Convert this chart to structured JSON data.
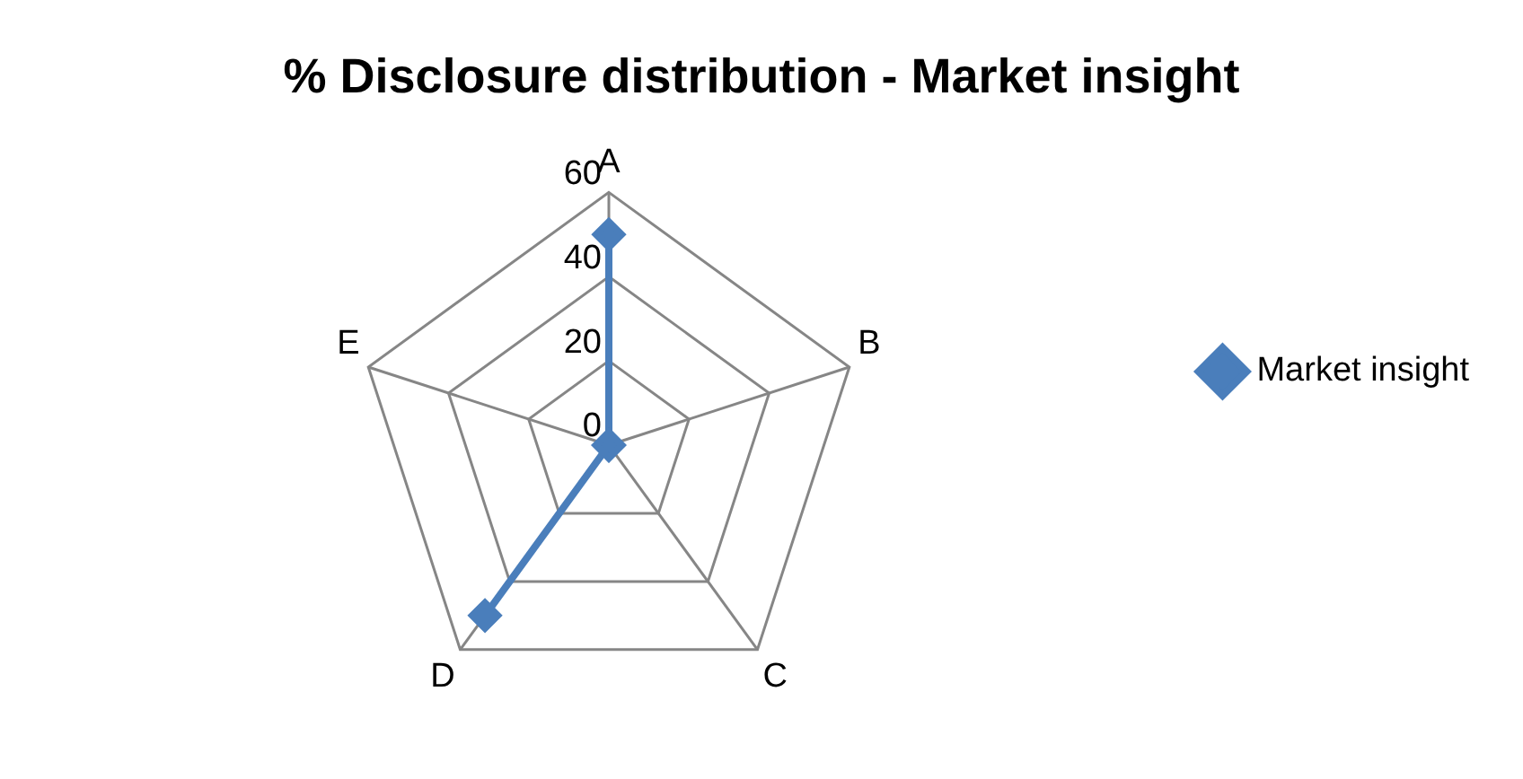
{
  "chart_data": {
    "type": "radar",
    "title": "% Disclosure distribution - Market insight",
    "categories": [
      "A",
      "B",
      "C",
      "D",
      "E"
    ],
    "series": [
      {
        "name": "Market insight",
        "color": "#4a7ebb",
        "values": [
          50,
          0,
          0,
          50,
          0
        ]
      }
    ],
    "ylim": [
      0,
      60
    ],
    "yticks": [
      0,
      20,
      40,
      60
    ],
    "grid": true,
    "legend": "right",
    "marker": "diamond",
    "line_style": "solid"
  }
}
